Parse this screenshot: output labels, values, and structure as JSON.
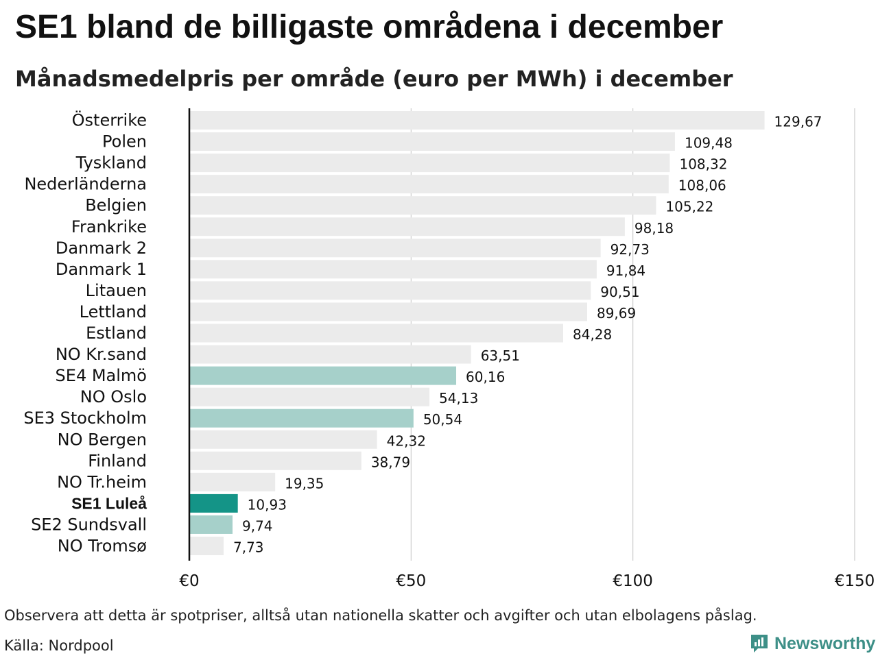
{
  "chart_data": {
    "type": "bar",
    "orientation": "horizontal",
    "title": "SE1 bland de billigaste områdena i december",
    "subtitle": "Månadsmedelpris per område (euro per MWh) i december",
    "categories": [
      "Österrike",
      "Polen",
      "Tyskland",
      "Nederländerna",
      "Belgien",
      "Frankrike",
      "Danmark  2",
      "Danmark  1",
      "Litauen",
      "Lettland",
      "Estland",
      "NO Kr.sand",
      "SE4  Malmö",
      "NO Oslo",
      "SE3  Stockholm",
      "NO Bergen",
      "Finland",
      "NO Tr.heim",
      "SE1 Luleå",
      "SE2  Sundsvall",
      "NO Tromsø"
    ],
    "values": [
      129.67,
      109.48,
      108.32,
      108.06,
      105.22,
      98.18,
      92.73,
      91.84,
      90.51,
      89.69,
      84.28,
      63.51,
      60.16,
      54.13,
      50.54,
      42.32,
      38.79,
      19.35,
      10.93,
      9.74,
      7.73
    ],
    "value_labels": [
      "129,67",
      "109,48",
      "108,32",
      "108,06",
      "105,22",
      "98,18",
      "92,73",
      "91,84",
      "90,51",
      "89,69",
      "84,28",
      "63,51",
      "60,16",
      "54,13",
      "50,54",
      "42,32",
      "38,79",
      "19,35",
      "10,93",
      "9,74",
      "7,73"
    ],
    "highlight": {
      "SE1 Luleå": "primary",
      "SE2  Sundsvall": "secondary",
      "SE3  Stockholm": "secondary",
      "SE4  Malmö": "secondary"
    },
    "xlim": [
      0,
      150
    ],
    "xticks": [
      0,
      50,
      100,
      150
    ],
    "xtick_labels": [
      "€0",
      "€50",
      "€100",
      "€150"
    ],
    "grid": true,
    "colors": {
      "default": "#ebebeb",
      "secondary": "#a6d0ca",
      "primary": "#149487",
      "axis": "#111111",
      "grid": "#cccccc"
    }
  },
  "footer": {
    "note": "Observera att detta är spotpriser, alltså utan nationella skatter och avgifter och utan elbolagens påslag.",
    "source": "Källa: Nordpool",
    "brand": "Newsworthy",
    "brand_icon": "newsworthy-logo-icon"
  }
}
